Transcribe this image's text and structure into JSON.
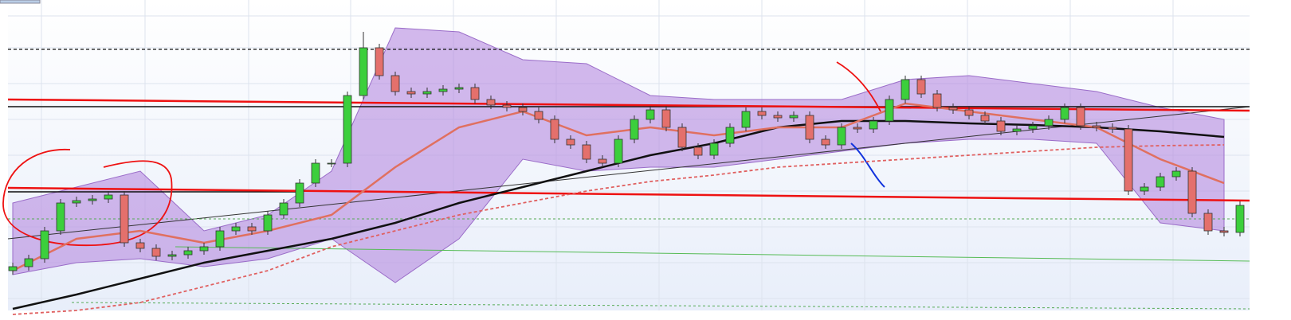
{
  "chart_data": {
    "type": "candlestick",
    "ylim": [
      0,
      400
    ],
    "open": [
      60,
      65,
      75,
      110,
      145,
      148,
      150,
      155,
      95,
      88,
      78,
      80,
      85,
      90,
      110,
      115,
      110,
      130,
      145,
      170,
      195,
      195,
      280,
      340,
      305,
      285,
      282,
      285,
      288,
      290,
      275,
      268,
      265,
      260,
      250,
      225,
      218,
      200,
      195,
      225,
      250,
      262,
      240,
      215,
      205,
      220,
      240,
      260,
      255,
      252,
      255,
      225,
      218,
      240,
      238,
      248,
      275,
      300,
      282,
      265,
      262,
      255,
      248,
      235,
      238,
      242,
      250,
      265,
      242,
      240,
      238,
      160,
      165,
      178,
      185,
      132,
      110,
      108
    ],
    "high": [
      70,
      80,
      115,
      150,
      153,
      155,
      160,
      160,
      100,
      93,
      85,
      90,
      95,
      115,
      120,
      120,
      135,
      150,
      175,
      200,
      200,
      285,
      360,
      345,
      310,
      290,
      290,
      293,
      295,
      295,
      280,
      273,
      270,
      265,
      255,
      230,
      223,
      205,
      230,
      255,
      267,
      267,
      245,
      220,
      225,
      245,
      265,
      265,
      260,
      260,
      260,
      230,
      245,
      245,
      253,
      280,
      305,
      305,
      287,
      270,
      267,
      260,
      253,
      243,
      247,
      255,
      270,
      270,
      247,
      245,
      243,
      170,
      183,
      190,
      190,
      137,
      115,
      147
    ],
    "low": [
      55,
      60,
      70,
      105,
      140,
      143,
      145,
      90,
      83,
      73,
      73,
      75,
      80,
      85,
      105,
      105,
      105,
      125,
      140,
      165,
      190,
      190,
      275,
      300,
      280,
      277,
      277,
      280,
      283,
      270,
      263,
      260,
      255,
      245,
      220,
      213,
      195,
      190,
      190,
      220,
      245,
      235,
      210,
      200,
      200,
      215,
      235,
      250,
      247,
      247,
      220,
      213,
      213,
      233,
      233,
      243,
      270,
      277,
      260,
      257,
      250,
      243,
      230,
      230,
      233,
      237,
      245,
      237,
      235,
      233,
      155,
      155,
      160,
      173,
      127,
      105,
      103,
      103
    ],
    "close": [
      65,
      75,
      110,
      145,
      148,
      150,
      155,
      95,
      88,
      78,
      80,
      85,
      90,
      110,
      115,
      110,
      130,
      145,
      170,
      195,
      195,
      280,
      340,
      305,
      285,
      282,
      285,
      288,
      290,
      275,
      268,
      265,
      260,
      250,
      225,
      218,
      200,
      195,
      225,
      250,
      262,
      240,
      215,
      205,
      220,
      240,
      260,
      255,
      252,
      255,
      225,
      218,
      240,
      238,
      248,
      275,
      300,
      282,
      265,
      262,
      255,
      248,
      235,
      238,
      242,
      250,
      265,
      242,
      240,
      238,
      160,
      165,
      178,
      185,
      132,
      110,
      108,
      142
    ],
    "up_color": "#3ccf3c",
    "down_color": "#e4706c",
    "overlay_x": [
      0,
      4,
      8,
      12,
      16,
      20,
      24,
      28,
      32,
      36,
      40,
      44,
      48,
      52,
      56,
      60,
      64,
      68,
      72,
      76
    ],
    "band": {
      "color": "#b58ae0",
      "upper": [
        145,
        165,
        185,
        110,
        130,
        185,
        365,
        360,
        325,
        320,
        280,
        275,
        275,
        275,
        300,
        305,
        295,
        285,
        265,
        250
      ],
      "lower": [
        55,
        70,
        75,
        65,
        75,
        100,
        45,
        100,
        200,
        185,
        190,
        190,
        200,
        210,
        220,
        225,
        225,
        220,
        120,
        110
      ]
    },
    "lines": [
      {
        "color": "#111111",
        "width": 2.5,
        "dash": false,
        "values": [
          12,
          30,
          50,
          70,
          85,
          100,
          120,
          145,
          165,
          185,
          205,
          220,
          240,
          248,
          248,
          245,
          243,
          240,
          235,
          228
        ]
      },
      {
        "color": "#e06060",
        "width": 1.8,
        "dash": true,
        "values": [
          5,
          10,
          20,
          40,
          60,
          90,
          110,
          130,
          145,
          160,
          172,
          180,
          190,
          195,
          200,
          205,
          210,
          215,
          217,
          218
        ]
      },
      {
        "color": "#e07060",
        "width": 2.5,
        "dash": false,
        "values": [
          60,
          100,
          110,
          95,
          110,
          130,
          190,
          240,
          260,
          230,
          240,
          230,
          240,
          240,
          270,
          260,
          250,
          240,
          200,
          170
        ]
      }
    ]
  }
}
